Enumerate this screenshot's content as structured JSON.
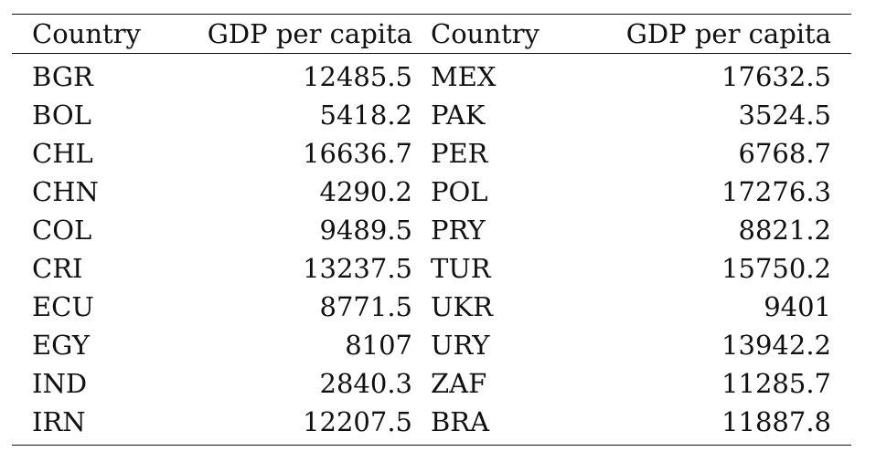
{
  "table": {
    "headers": [
      "Country",
      "GDP per capita",
      "Country",
      "GDP per capita"
    ],
    "rows": [
      [
        "BGR",
        "12485.5",
        "MEX",
        "17632.5"
      ],
      [
        "BOL",
        "5418.2",
        "PAK",
        "3524.5"
      ],
      [
        "CHL",
        "16636.7",
        "PER",
        "6768.7"
      ],
      [
        "CHN",
        "4290.2",
        "POL",
        "17276.3"
      ],
      [
        "COL",
        "9489.5",
        "PRY",
        "8821.2"
      ],
      [
        "CRI",
        "13237.5",
        "TUR",
        "15750.2"
      ],
      [
        "ECU",
        "8771.5",
        "UKR",
        "9401"
      ],
      [
        "EGY",
        "8107",
        "URY",
        "13942.2"
      ],
      [
        "IND",
        "2840.3",
        "ZAF",
        "11285.7"
      ],
      [
        "IRN",
        "12207.5",
        "BRA",
        "11887.8"
      ]
    ]
  }
}
